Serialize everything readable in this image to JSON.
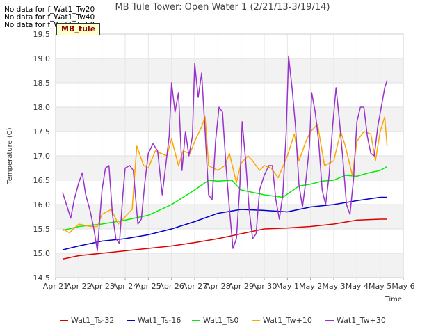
{
  "nodata_messages": [
    "No data for f_Wat1_Tw20",
    "No data for f_Wat1_Tw40",
    "No data for f_Wat1_Tw50"
  ],
  "tag_label": "MB_tule",
  "chart_data": {
    "type": "line",
    "title": "MB Tule Tower: Open Water 1 (2/21/13-3/19/14)",
    "xlabel": "Time",
    "ylabel": "Temperature (C)",
    "ylim": [
      14.5,
      19.5
    ],
    "xlim": [
      0,
      15
    ],
    "x_ticks": [
      {
        "value": 0,
        "label": "Apr 21"
      },
      {
        "value": 1,
        "label": "Apr 22"
      },
      {
        "value": 2,
        "label": "Apr 23"
      },
      {
        "value": 3,
        "label": "Apr 24"
      },
      {
        "value": 4,
        "label": "Apr 25"
      },
      {
        "value": 5,
        "label": "Apr 26"
      },
      {
        "value": 6,
        "label": "Apr 27"
      },
      {
        "value": 7,
        "label": "Apr 28"
      },
      {
        "value": 8,
        "label": "Apr 29"
      },
      {
        "value": 9,
        "label": "Apr 30"
      },
      {
        "value": 10,
        "label": "May 1"
      },
      {
        "value": 11,
        "label": "May 2"
      },
      {
        "value": 12,
        "label": "May 3"
      },
      {
        "value": 13,
        "label": "May 4"
      },
      {
        "value": 14,
        "label": "May 5"
      },
      {
        "value": 15,
        "label": "May 6"
      }
    ],
    "y_ticks": [
      "14.5",
      "15.0",
      "15.5",
      "16.0",
      "16.5",
      "17.0",
      "17.5",
      "18.0",
      "18.5",
      "19.0",
      "19.5"
    ],
    "grid": true,
    "background_bands": "alternating light gray horizontal bands",
    "legend_position": "bottom",
    "series": [
      {
        "name": "Wat1_Ts-32",
        "color": "#dd0000",
        "points": [
          [
            0.3,
            14.88
          ],
          [
            1,
            14.95
          ],
          [
            2,
            15.0
          ],
          [
            3,
            15.05
          ],
          [
            4,
            15.1
          ],
          [
            5,
            15.15
          ],
          [
            6,
            15.22
          ],
          [
            7,
            15.3
          ],
          [
            8,
            15.4
          ],
          [
            9,
            15.5
          ],
          [
            10,
            15.52
          ],
          [
            11,
            15.55
          ],
          [
            12,
            15.6
          ],
          [
            13,
            15.68
          ],
          [
            14,
            15.7
          ],
          [
            14.3,
            15.7
          ]
        ]
      },
      {
        "name": "Wat1_Ts-16",
        "color": "#0000cc",
        "points": [
          [
            0.3,
            15.07
          ],
          [
            1,
            15.15
          ],
          [
            2,
            15.25
          ],
          [
            3,
            15.3
          ],
          [
            4,
            15.38
          ],
          [
            5,
            15.5
          ],
          [
            6,
            15.65
          ],
          [
            7,
            15.82
          ],
          [
            8,
            15.9
          ],
          [
            9,
            15.88
          ],
          [
            10,
            15.85
          ],
          [
            11,
            15.95
          ],
          [
            12,
            16.0
          ],
          [
            13,
            16.08
          ],
          [
            14,
            16.15
          ],
          [
            14.3,
            16.15
          ]
        ]
      },
      {
        "name": "Wat1_Ts0",
        "color": "#00ee00",
        "points": [
          [
            0.3,
            15.47
          ],
          [
            1,
            15.55
          ],
          [
            2,
            15.6
          ],
          [
            3,
            15.68
          ],
          [
            4,
            15.78
          ],
          [
            5,
            16.0
          ],
          [
            6,
            16.3
          ],
          [
            6.6,
            16.5
          ],
          [
            7,
            16.48
          ],
          [
            7.6,
            16.5
          ],
          [
            8,
            16.3
          ],
          [
            9,
            16.2
          ],
          [
            9.8,
            16.15
          ],
          [
            10.5,
            16.38
          ],
          [
            11,
            16.42
          ],
          [
            11.5,
            16.48
          ],
          [
            12,
            16.5
          ],
          [
            12.5,
            16.6
          ],
          [
            13,
            16.58
          ],
          [
            13.5,
            16.65
          ],
          [
            14,
            16.7
          ],
          [
            14.3,
            16.78
          ]
        ]
      },
      {
        "name": "Wat1_Tw+10",
        "color": "#ffa500",
        "points": [
          [
            0.3,
            15.5
          ],
          [
            0.6,
            15.42
          ],
          [
            1,
            15.6
          ],
          [
            1.5,
            15.55
          ],
          [
            1.8,
            15.55
          ],
          [
            2,
            15.8
          ],
          [
            2.4,
            15.9
          ],
          [
            2.7,
            15.6
          ],
          [
            3,
            15.75
          ],
          [
            3.3,
            15.9
          ],
          [
            3.5,
            17.2
          ],
          [
            3.8,
            16.8
          ],
          [
            4,
            16.75
          ],
          [
            4.3,
            17.1
          ],
          [
            4.8,
            17.0
          ],
          [
            5,
            17.35
          ],
          [
            5.3,
            16.8
          ],
          [
            5.5,
            17.1
          ],
          [
            5.8,
            17.05
          ],
          [
            6,
            17.3
          ],
          [
            6.3,
            17.6
          ],
          [
            6.45,
            17.8
          ],
          [
            6.6,
            16.8
          ],
          [
            7,
            16.7
          ],
          [
            7.3,
            16.8
          ],
          [
            7.5,
            17.05
          ],
          [
            7.8,
            16.45
          ],
          [
            8,
            16.85
          ],
          [
            8.3,
            17.0
          ],
          [
            8.5,
            16.9
          ],
          [
            8.8,
            16.7
          ],
          [
            9,
            16.8
          ],
          [
            9.3,
            16.75
          ],
          [
            9.6,
            16.55
          ],
          [
            10,
            17.0
          ],
          [
            10.3,
            17.45
          ],
          [
            10.5,
            16.9
          ],
          [
            10.8,
            17.3
          ],
          [
            11,
            17.5
          ],
          [
            11.3,
            17.65
          ],
          [
            11.6,
            16.8
          ],
          [
            12,
            16.9
          ],
          [
            12.3,
            17.5
          ],
          [
            12.5,
            17.2
          ],
          [
            12.8,
            16.6
          ],
          [
            13,
            17.3
          ],
          [
            13.3,
            17.5
          ],
          [
            13.6,
            17.45
          ],
          [
            13.8,
            16.9
          ],
          [
            14,
            17.5
          ],
          [
            14.2,
            17.8
          ],
          [
            14.3,
            17.2
          ]
        ]
      },
      {
        "name": "Wat1_Tw+30",
        "color": "#9932cc",
        "points": [
          [
            0.3,
            16.25
          ],
          [
            0.5,
            15.95
          ],
          [
            0.65,
            15.72
          ],
          [
            0.8,
            16.1
          ],
          [
            1,
            16.45
          ],
          [
            1.15,
            16.65
          ],
          [
            1.3,
            16.2
          ],
          [
            1.5,
            15.85
          ],
          [
            1.65,
            15.5
          ],
          [
            1.8,
            15.05
          ],
          [
            2,
            16.3
          ],
          [
            2.15,
            16.75
          ],
          [
            2.3,
            16.8
          ],
          [
            2.45,
            15.8
          ],
          [
            2.6,
            15.3
          ],
          [
            2.75,
            15.2
          ],
          [
            2.9,
            16.2
          ],
          [
            3,
            16.75
          ],
          [
            3.2,
            16.8
          ],
          [
            3.35,
            16.7
          ],
          [
            3.55,
            15.6
          ],
          [
            3.7,
            15.7
          ],
          [
            3.85,
            16.45
          ],
          [
            4,
            17.05
          ],
          [
            4.2,
            17.25
          ],
          [
            4.4,
            17.1
          ],
          [
            4.6,
            16.2
          ],
          [
            4.75,
            16.8
          ],
          [
            4.9,
            17.4
          ],
          [
            5,
            18.5
          ],
          [
            5.15,
            17.9
          ],
          [
            5.3,
            18.3
          ],
          [
            5.45,
            16.7
          ],
          [
            5.6,
            17.5
          ],
          [
            5.75,
            17.0
          ],
          [
            5.9,
            17.4
          ],
          [
            6,
            18.9
          ],
          [
            6.15,
            18.2
          ],
          [
            6.3,
            18.7
          ],
          [
            6.45,
            17.5
          ],
          [
            6.6,
            16.2
          ],
          [
            6.75,
            16.1
          ],
          [
            6.9,
            17.3
          ],
          [
            7.05,
            18.0
          ],
          [
            7.2,
            17.9
          ],
          [
            7.35,
            16.8
          ],
          [
            7.5,
            15.9
          ],
          [
            7.65,
            15.1
          ],
          [
            7.8,
            15.3
          ],
          [
            7.95,
            16.4
          ],
          [
            8.05,
            17.7
          ],
          [
            8.2,
            16.9
          ],
          [
            8.35,
            15.9
          ],
          [
            8.5,
            15.3
          ],
          [
            8.65,
            15.4
          ],
          [
            8.8,
            16.3
          ],
          [
            9,
            16.6
          ],
          [
            9.2,
            16.8
          ],
          [
            9.35,
            16.8
          ],
          [
            9.5,
            16.1
          ],
          [
            9.65,
            15.7
          ],
          [
            9.8,
            16.2
          ],
          [
            9.95,
            17.5
          ],
          [
            10.05,
            19.05
          ],
          [
            10.2,
            18.4
          ],
          [
            10.35,
            17.6
          ],
          [
            10.5,
            16.4
          ],
          [
            10.65,
            15.95
          ],
          [
            10.8,
            16.5
          ],
          [
            10.95,
            17.2
          ],
          [
            11.05,
            18.3
          ],
          [
            11.2,
            17.9
          ],
          [
            11.35,
            17.3
          ],
          [
            11.5,
            16.3
          ],
          [
            11.65,
            16.0
          ],
          [
            11.8,
            16.6
          ],
          [
            11.95,
            17.6
          ],
          [
            12.1,
            18.4
          ],
          [
            12.25,
            17.7
          ],
          [
            12.4,
            16.9
          ],
          [
            12.55,
            16.0
          ],
          [
            12.7,
            15.8
          ],
          [
            12.85,
            16.5
          ],
          [
            13,
            17.7
          ],
          [
            13.15,
            18.0
          ],
          [
            13.3,
            18.0
          ],
          [
            13.45,
            17.4
          ],
          [
            13.6,
            17.05
          ],
          [
            13.75,
            17.0
          ],
          [
            13.9,
            17.6
          ],
          [
            14.05,
            18.0
          ],
          [
            14.2,
            18.4
          ],
          [
            14.3,
            18.55
          ]
        ]
      }
    ]
  }
}
